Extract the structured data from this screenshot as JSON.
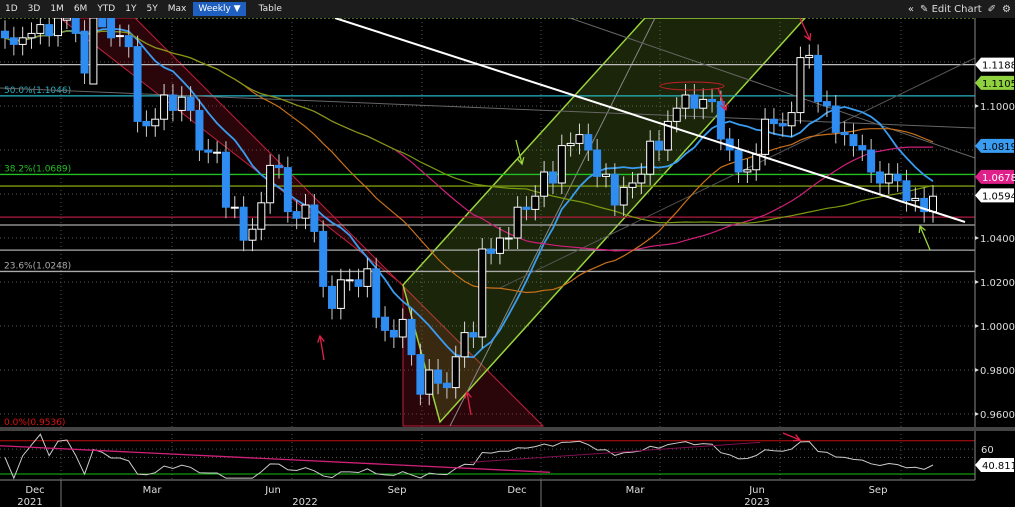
{
  "toolbar": {
    "ranges": [
      "1D",
      "3D",
      "1M",
      "6M",
      "YTD",
      "1Y",
      "5Y",
      "Max"
    ],
    "frequency": "Weekly ▼",
    "table_label": "Table",
    "collapse_icon": "double-chevron-left-icon",
    "edit_label": "Edit Chart",
    "edit_icon": "pencil-icon",
    "settings_icon": "gear-icon"
  },
  "colors": {
    "up_candle": "#ffffff",
    "down_candle": "#2f8cf0",
    "fib_50": "#27b5c4",
    "fib_38": "#22c022",
    "fib_0": "#e01010",
    "down_channel": "#c0203a",
    "up_channel": "#9ad43c",
    "ma_blue": "#3a9cf0",
    "ma_pink": "#d0207a",
    "ma_orange": "#c8701a",
    "ma_olive": "#7a9a10"
  },
  "chart_data": {
    "type": "candlestick",
    "frequency": "Weekly",
    "closes": [
      1.131,
      1.128,
      1.131,
      1.133,
      1.137,
      1.132,
      1.14,
      1.141,
      1.134,
      1.115,
      1.145,
      1.141,
      1.132,
      1.132,
      1.127,
      1.093,
      1.091,
      1.094,
      1.105,
      1.098,
      1.104,
      1.098,
      1.08,
      1.079,
      1.079,
      1.054,
      1.054,
      1.039,
      1.044,
      1.056,
      1.073,
      1.072,
      1.052,
      1.049,
      1.055,
      1.043,
      1.018,
      1.008,
      1.021,
      1.021,
      1.018,
      1.026,
      1.004,
      0.998,
      0.995,
      1.003,
      0.987,
      0.969,
      0.98,
      0.974,
      0.972,
      0.986,
      0.997,
      0.995,
      1.035,
      1.033,
      1.04,
      1.04,
      1.054,
      1.053,
      1.059,
      1.07,
      1.065,
      1.082,
      1.083,
      1.087,
      1.08,
      1.068,
      1.069,
      1.055,
      1.063,
      1.065,
      1.069,
      1.084,
      1.08,
      1.093,
      1.099,
      1.105,
      1.099,
      1.103,
      1.102,
      1.085,
      1.08,
      1.07,
      1.071,
      1.078,
      1.094,
      1.092,
      1.091,
      1.097,
      1.122,
      1.123,
      1.102,
      1.1,
      1.088,
      1.087,
      1.082,
      1.08,
      1.07,
      1.065,
      1.069,
      1.066,
      1.057,
      1.058,
      1.052,
      1.059
    ],
    "ylim": [
      0.9536,
      1.14
    ],
    "y_ticks": [
      "1.1000",
      "1.0400",
      "1.0200",
      "1.0000",
      "0.9800",
      "0.9600"
    ],
    "y_tick_values": [
      1.1,
      1.04,
      1.02,
      1.0,
      0.98,
      0.96
    ],
    "x_ticks": [
      {
        "label": "Dec",
        "year": "2021"
      },
      {
        "label": "Mar",
        "year": ""
      },
      {
        "label": "Jun",
        "year": "2022"
      },
      {
        "label": "Sep",
        "year": ""
      },
      {
        "label": "Dec",
        "year": ""
      },
      {
        "label": "Mar",
        "year": ""
      },
      {
        "label": "Jun",
        "year": "2023"
      },
      {
        "label": "Sep",
        "year": ""
      }
    ],
    "fib_levels": [
      {
        "label": "50.0%(1.1046)",
        "value": 1.1046,
        "color": "#27b5c4"
      },
      {
        "label": "38.2%(1.0689)",
        "value": 1.0689,
        "color": "#22c022"
      },
      {
        "label": "23.6%(1.0248)",
        "value": 1.0248,
        "color": "#aaaaaa"
      },
      {
        "label": "0.0%(0.9536)",
        "value": 0.9536,
        "color": "#e01010"
      }
    ],
    "price_tags": [
      {
        "label": "1.1188",
        "value": 1.1188,
        "bg": "#ffffff",
        "fg": "#000000"
      },
      {
        "label": "1.1105",
        "value": 1.1105,
        "bg": "#8fd13f",
        "fg": "#000000"
      },
      {
        "label": "1.0819",
        "value": 1.0819,
        "bg": "#3a9cf0",
        "fg": "#000000"
      },
      {
        "label": "1.0678",
        "value": 1.0678,
        "bg": "#e0208a",
        "fg": "#ffffff"
      },
      {
        "label": "1.0594",
        "value": 1.0594,
        "bg": "#ffffff",
        "fg": "#000000"
      }
    ],
    "rsi": {
      "y_ticks": [
        "60"
      ],
      "upper": 70,
      "lower": 30,
      "last_label": "40.811",
      "last_value": 40.811
    }
  }
}
